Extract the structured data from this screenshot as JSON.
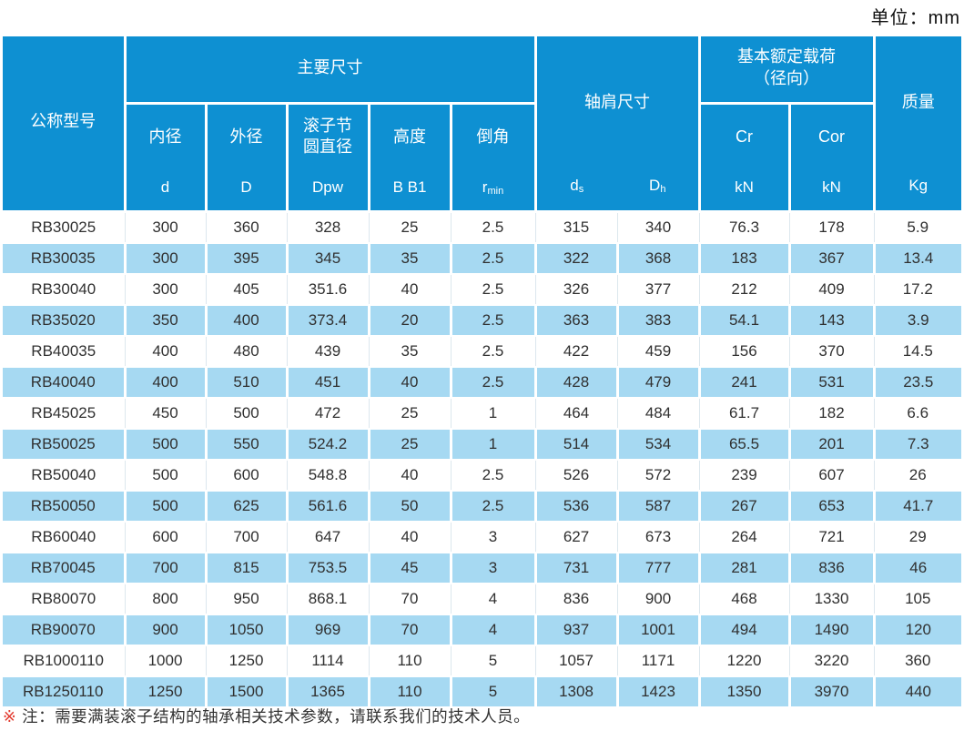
{
  "page": {
    "unit_label": "单位：mm"
  },
  "colors": {
    "header_blue": "#0e90d2",
    "row_stripe_blue": "#a6d9f2",
    "note_marker_red": "#e23a2e",
    "body_text": "#303030"
  },
  "table": {
    "header": {
      "model_label": "公称型号",
      "main_dims_group": "主要尺寸",
      "shoulder_group": "轴肩尺寸",
      "load_group_line1": "基本额定载荷",
      "load_group_line2": "（径向）",
      "mass_label": "质量",
      "mass_unit": "Kg",
      "bore_label": "内径",
      "bore_sym": "d",
      "outer_label": "外径",
      "outer_sym": "D",
      "pitch_label_line1": "滚子节",
      "pitch_label_line2": "圆直径",
      "pitch_sym": "Dpw",
      "height_label": "高度",
      "height_sym": "B B1",
      "chamfer_label": "倒角",
      "chamfer_sym": "r",
      "chamfer_sym_sub": "min",
      "ds_sym": "d",
      "ds_sub": "s",
      "dh_sym": "D",
      "dh_sub": "h",
      "cr_label": "Cr",
      "cr_unit": "kN",
      "cor_label": "Cor",
      "cor_unit": "kN"
    },
    "rows": [
      [
        "RB30025",
        "300",
        "360",
        "328",
        "25",
        "2.5",
        "315",
        "340",
        "76.3",
        "178",
        "5.9"
      ],
      [
        "RB30035",
        "300",
        "395",
        "345",
        "35",
        "2.5",
        "322",
        "368",
        "183",
        "367",
        "13.4"
      ],
      [
        "RB30040",
        "300",
        "405",
        "351.6",
        "40",
        "2.5",
        "326",
        "377",
        "212",
        "409",
        "17.2"
      ],
      [
        "RB35020",
        "350",
        "400",
        "373.4",
        "20",
        "2.5",
        "363",
        "383",
        "54.1",
        "143",
        "3.9"
      ],
      [
        "RB40035",
        "400",
        "480",
        "439",
        "35",
        "2.5",
        "422",
        "459",
        "156",
        "370",
        "14.5"
      ],
      [
        "RB40040",
        "400",
        "510",
        "451",
        "40",
        "2.5",
        "428",
        "479",
        "241",
        "531",
        "23.5"
      ],
      [
        "RB45025",
        "450",
        "500",
        "472",
        "25",
        "1",
        "464",
        "484",
        "61.7",
        "182",
        "6.6"
      ],
      [
        "RB50025",
        "500",
        "550",
        "524.2",
        "25",
        "1",
        "514",
        "534",
        "65.5",
        "201",
        "7.3"
      ],
      [
        "RB50040",
        "500",
        "600",
        "548.8",
        "40",
        "2.5",
        "526",
        "572",
        "239",
        "607",
        "26"
      ],
      [
        "RB50050",
        "500",
        "625",
        "561.6",
        "50",
        "2.5",
        "536",
        "587",
        "267",
        "653",
        "41.7"
      ],
      [
        "RB60040",
        "600",
        "700",
        "647",
        "40",
        "3",
        "627",
        "673",
        "264",
        "721",
        "29"
      ],
      [
        "RB70045",
        "700",
        "815",
        "753.5",
        "45",
        "3",
        "731",
        "777",
        "281",
        "836",
        "46"
      ],
      [
        "RB80070",
        "800",
        "950",
        "868.1",
        "70",
        "4",
        "836",
        "900",
        "468",
        "1330",
        "105"
      ],
      [
        "RB90070",
        "900",
        "1050",
        "969",
        "70",
        "4",
        "937",
        "1001",
        "494",
        "1490",
        "120"
      ],
      [
        "RB1000110",
        "1000",
        "1250",
        "1114",
        "110",
        "5",
        "1057",
        "1171",
        "1220",
        "3220",
        "360"
      ],
      [
        "RB1250110",
        "1250",
        "1500",
        "1365",
        "110",
        "5",
        "1308",
        "1423",
        "1350",
        "3970",
        "440"
      ]
    ]
  },
  "footnote": {
    "marker": "※",
    "text": "注：需要满装滚子结构的轴承相关技术参数，请联系我们的技术人员。"
  }
}
